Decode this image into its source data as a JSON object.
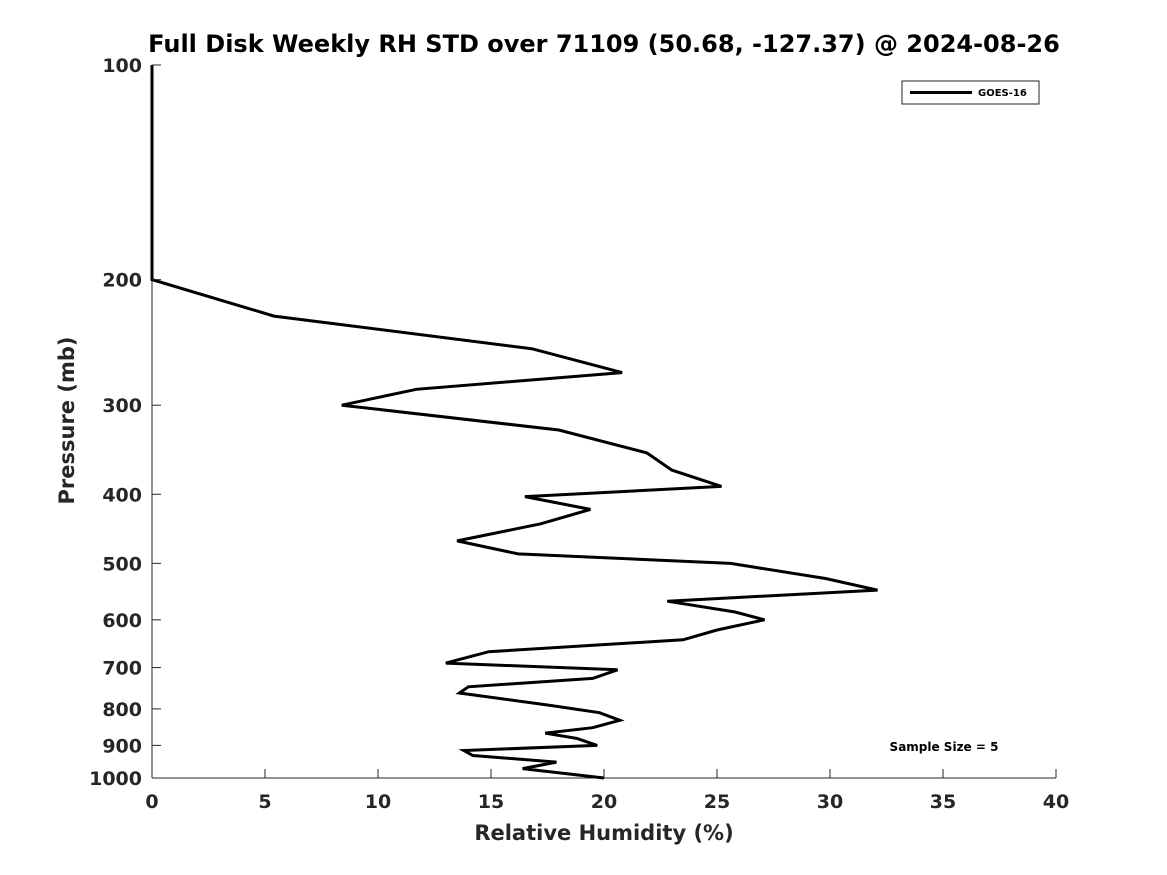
{
  "chart_data": {
    "type": "line",
    "title": "Full Disk Weekly RH STD over 71109 (50.68, -127.37) @ 2024-08-26",
    "xlabel": "Relative Humidity (%)",
    "ylabel": "Pressure (mb)",
    "xlim": [
      0,
      40
    ],
    "ylim": [
      100,
      1000
    ],
    "yscale": "log",
    "y_reversed": true,
    "xticks": [
      0,
      5,
      10,
      15,
      20,
      25,
      30,
      35,
      40
    ],
    "yticks": [
      100,
      200,
      300,
      400,
      500,
      600,
      700,
      800,
      900,
      1000
    ],
    "grid": false,
    "legend": {
      "placement": "top-right",
      "entries": [
        "GOES-16"
      ]
    },
    "annotation": "Sample Size = 5",
    "series": [
      {
        "name": "GOES-16",
        "color": "#000000",
        "points": [
          [
            0,
            100
          ],
          [
            0,
            125
          ],
          [
            0,
            150
          ],
          [
            0,
            175
          ],
          [
            0,
            200
          ],
          [
            5.4,
            225
          ],
          [
            16.8,
            250
          ],
          [
            20.8,
            270
          ],
          [
            11.7,
            285
          ],
          [
            8.4,
            300
          ],
          [
            18.0,
            325
          ],
          [
            21.9,
            350
          ],
          [
            23.0,
            370
          ],
          [
            25.2,
            390
          ],
          [
            16.5,
            403
          ],
          [
            19.4,
            420
          ],
          [
            17.2,
            440
          ],
          [
            13.5,
            465
          ],
          [
            16.2,
            485
          ],
          [
            25.6,
            500
          ],
          [
            29.8,
            525
          ],
          [
            32.1,
            545
          ],
          [
            22.8,
            565
          ],
          [
            25.8,
            585
          ],
          [
            27.1,
            600
          ],
          [
            25.0,
            620
          ],
          [
            23.5,
            640
          ],
          [
            14.9,
            665
          ],
          [
            13.0,
            690
          ],
          [
            20.6,
            705
          ],
          [
            19.5,
            725
          ],
          [
            14.0,
            745
          ],
          [
            13.6,
            760
          ],
          [
            17.5,
            790
          ],
          [
            19.8,
            810
          ],
          [
            20.7,
            830
          ],
          [
            19.5,
            850
          ],
          [
            17.4,
            865
          ],
          [
            18.8,
            880
          ],
          [
            19.7,
            900
          ],
          [
            13.8,
            915
          ],
          [
            14.2,
            930
          ],
          [
            17.9,
            950
          ],
          [
            16.4,
            970
          ],
          [
            20.0,
            1000
          ]
        ]
      }
    ]
  }
}
